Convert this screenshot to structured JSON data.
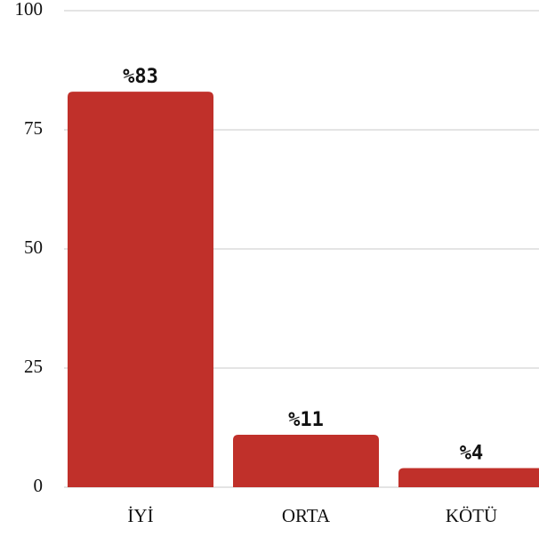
{
  "chart_data": {
    "type": "bar",
    "categories": [
      "İYİ",
      "ORTA",
      "KÖTÜ"
    ],
    "values": [
      83,
      11,
      4
    ],
    "value_labels": [
      "%83",
      "%11",
      "%4"
    ],
    "color": "#c0302a",
    "ylim": [
      0,
      100
    ],
    "yticks": [
      0,
      25,
      50,
      75,
      100
    ],
    "grid": true
  }
}
